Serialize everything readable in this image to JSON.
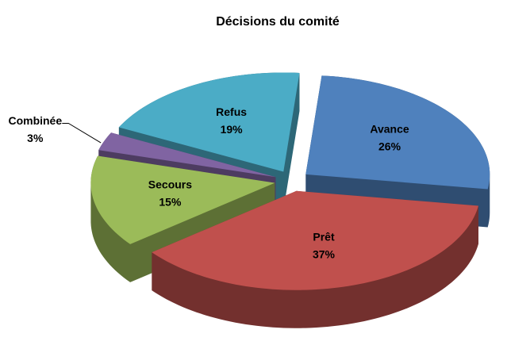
{
  "chart_data": {
    "type": "pie3d",
    "title": "Décisions du comité",
    "categories": [
      "Avance",
      "Prêt",
      "Secours",
      "Combinée",
      "Refus"
    ],
    "values": [
      26,
      37,
      15,
      3,
      19
    ],
    "value_labels": [
      "26%",
      "37%",
      "15%",
      "3%",
      "19%"
    ],
    "colors": [
      "#4f81bd",
      "#c0504d",
      "#9bbb59",
      "#8064a2",
      "#4bacc6"
    ]
  }
}
